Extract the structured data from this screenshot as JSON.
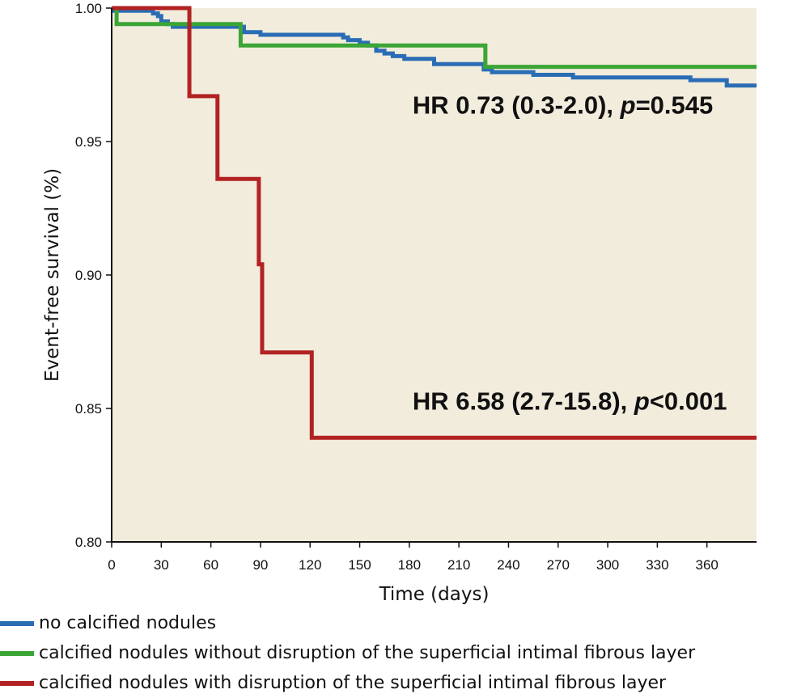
{
  "chart_data": {
    "type": "line",
    "step": true,
    "xlabel": "Time (days)",
    "ylabel": "Event-free survival (%)",
    "xlim": [
      0,
      390
    ],
    "ylim": [
      0.8,
      1.0
    ],
    "xticks": [
      0,
      30,
      60,
      90,
      120,
      150,
      180,
      210,
      240,
      270,
      300,
      330,
      360
    ],
    "yticks": [
      0.8,
      0.85,
      0.9,
      0.95,
      1.0
    ],
    "ytick_labels": [
      "0.80",
      "0.85",
      "0.90",
      "0.95",
      "1.00"
    ],
    "plot_background": "#f2ecdc",
    "series": [
      {
        "name": "no calcified nodules",
        "color": "#2a6db5",
        "x": [
          0,
          12,
          25,
          28,
          30,
          34,
          37,
          75,
          80,
          90,
          140,
          143,
          150,
          155,
          160,
          165,
          170,
          177,
          195,
          225,
          230,
          255,
          255,
          279,
          300,
          330,
          350,
          372,
          390
        ],
        "y": [
          0.999,
          0.999,
          0.998,
          0.997,
          0.995,
          0.994,
          0.993,
          0.993,
          0.991,
          0.99,
          0.989,
          0.988,
          0.987,
          0.986,
          0.984,
          0.983,
          0.982,
          0.981,
          0.979,
          0.977,
          0.976,
          0.976,
          0.975,
          0.974,
          0.974,
          0.974,
          0.973,
          0.971,
          0.971
        ]
      },
      {
        "name": "calcified nodules without disruption of the superficial intimal fibrous layer",
        "color": "#3ba536",
        "x": [
          0,
          3,
          78,
          226,
          390
        ],
        "y": [
          1.0,
          0.994,
          0.986,
          0.978,
          0.978
        ]
      },
      {
        "name": "calcified nodules with disruption of the superficial intimal fibrous layer",
        "color": "#b22222",
        "x": [
          0,
          47,
          64,
          89,
          89,
          91,
          121,
          390
        ],
        "y": [
          1.0,
          0.967,
          0.936,
          0.923,
          0.904,
          0.871,
          0.839,
          0.839
        ]
      }
    ],
    "annotations": [
      {
        "text_parts": [
          "HR 0.73 (0.3-2.0), ",
          "p",
          "=0.545"
        ],
        "anchor_x": 182,
        "anchor_y": 0.9605
      },
      {
        "text_parts": [
          "HR 6.58 (2.7-15.8), ",
          "p",
          "<0.001"
        ],
        "anchor_x": 182,
        "anchor_y": 0.8495
      }
    ],
    "legend": {
      "position": "bottom-left",
      "entries": [
        "no calcified nodules",
        "calcified nodules without disruption of the superficial intimal fibrous layer",
        "calcified nodules with disruption of the superficial intimal fibrous layer"
      ]
    }
  }
}
